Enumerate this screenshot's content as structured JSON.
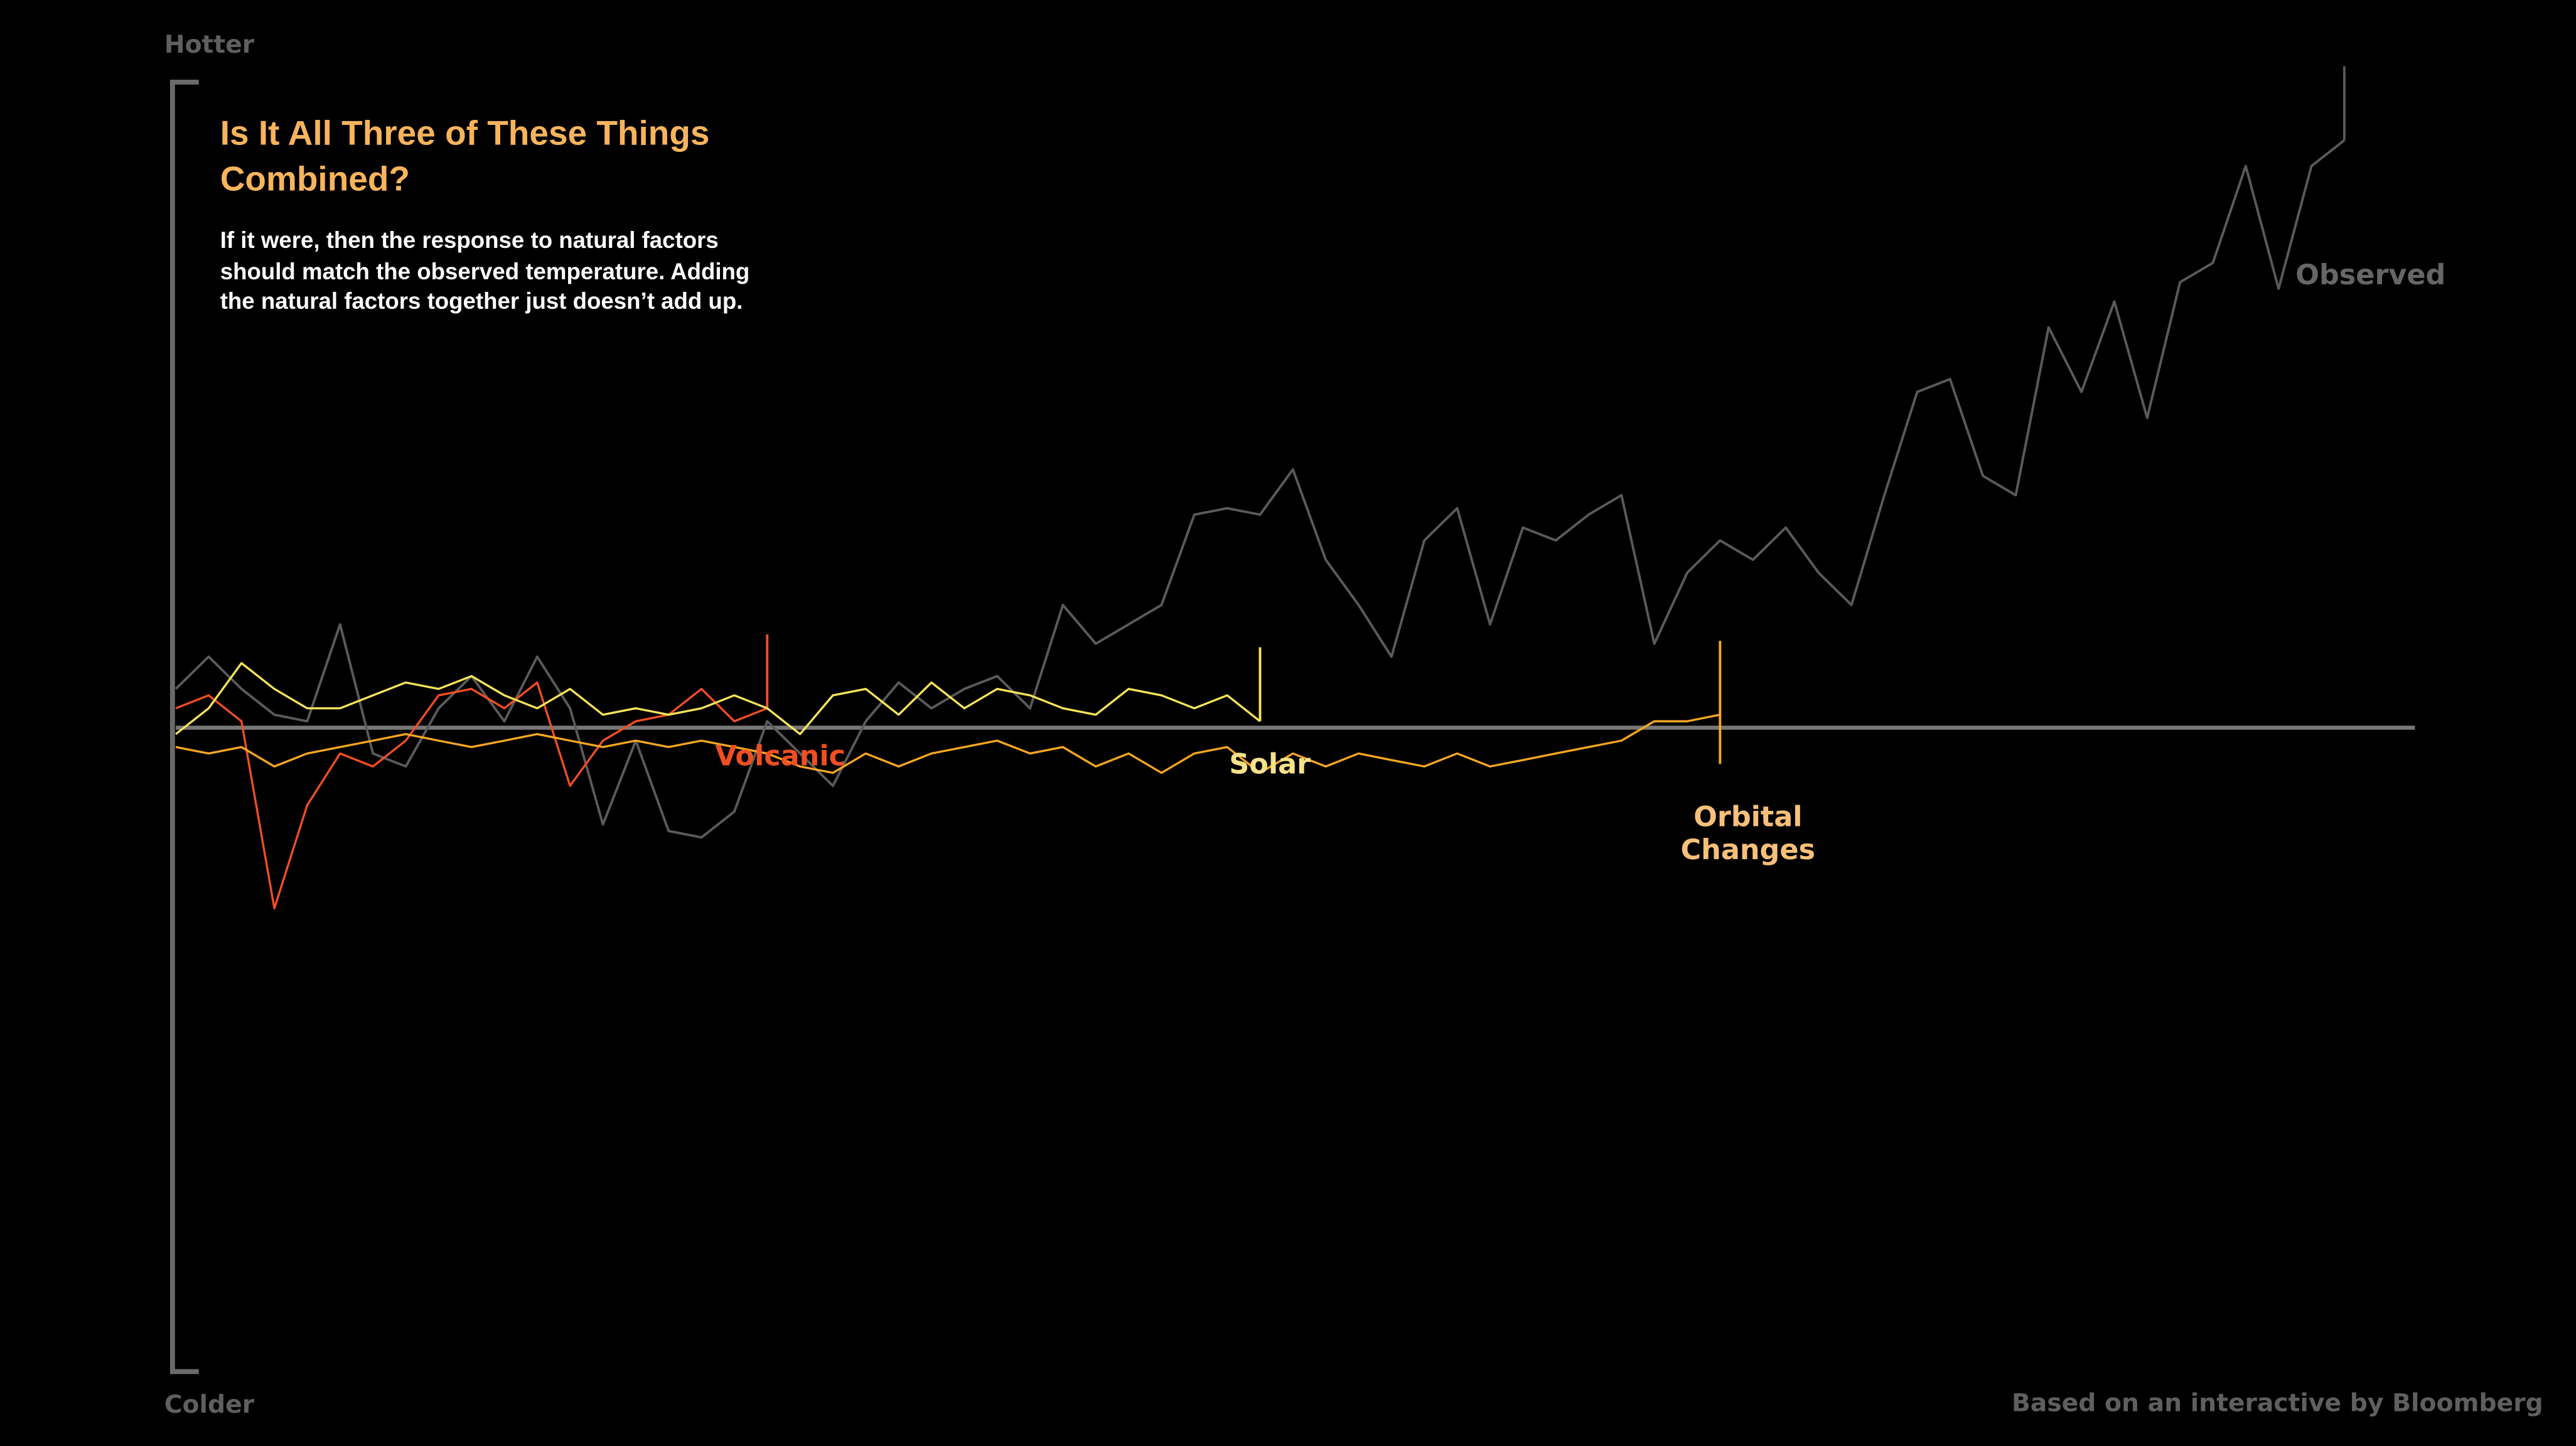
{
  "chart_data": {
    "type": "line",
    "title": "Is It All Three of These Things Combined?",
    "subtitle": "If it were, then the response to natural factors should match the observed temperature. Adding the natural factors together just doesn’t add up.",
    "y_top_label": "Hotter",
    "y_bottom_label": "Colder",
    "credit": "Based on an interactive by Bloomberg",
    "ylim": [
      -1,
      1
    ],
    "series": [
      {
        "name": "Observed",
        "color": "#5a5a5a",
        "values": [
          0.06,
          0.11,
          0.06,
          0.02,
          0.01,
          0.16,
          -0.04,
          -0.06,
          0.03,
          0.08,
          0.01,
          0.11,
          0.03,
          -0.15,
          -0.02,
          -0.16,
          -0.17,
          -0.13,
          0.01,
          -0.04,
          -0.09,
          0.01,
          0.07,
          0.03,
          0.06,
          0.08,
          0.03,
          0.19,
          0.13,
          0.16,
          0.19,
          0.33,
          0.34,
          0.33,
          0.4,
          0.26,
          0.19,
          0.11,
          0.29,
          0.34,
          0.16,
          0.31,
          0.29,
          0.33,
          0.36,
          0.13,
          0.24,
          0.29,
          0.26,
          0.31,
          0.24,
          0.19,
          0.36,
          0.52,
          0.54,
          0.39,
          0.36,
          0.62,
          0.52,
          0.66,
          0.48,
          0.69,
          0.72,
          0.87,
          0.68,
          0.87,
          0.91
        ]
      },
      {
        "name": "Volcanic",
        "color": "#f04e23",
        "values": [
          0.03,
          0.05,
          0.01,
          -0.28,
          -0.12,
          -0.04,
          -0.06,
          -0.02,
          0.05,
          0.06,
          0.03,
          0.07,
          -0.09,
          -0.02,
          0.01,
          0.02,
          0.06,
          0.01,
          0.03
        ]
      },
      {
        "name": "Solar",
        "color": "#f7e35a",
        "values": [
          -0.01,
          0.03,
          0.1,
          0.06,
          0.03,
          0.03,
          0.05,
          0.07,
          0.06,
          0.08,
          0.05,
          0.03,
          0.06,
          0.02,
          0.03,
          0.02,
          0.03,
          0.05,
          0.03,
          -0.01,
          0.05,
          0.06,
          0.02,
          0.07,
          0.03,
          0.06,
          0.05,
          0.03,
          0.02,
          0.06,
          0.05,
          0.03,
          0.05,
          0.01
        ]
      },
      {
        "name": "Orbital Changes",
        "color": "#f5a623",
        "values": [
          -0.03,
          -0.04,
          -0.03,
          -0.06,
          -0.04,
          -0.03,
          -0.02,
          -0.01,
          -0.02,
          -0.03,
          -0.02,
          -0.01,
          -0.02,
          -0.03,
          -0.02,
          -0.03,
          -0.02,
          -0.03,
          -0.04,
          -0.06,
          -0.07,
          -0.04,
          -0.06,
          -0.04,
          -0.03,
          -0.02,
          -0.04,
          -0.03,
          -0.06,
          -0.04,
          -0.07,
          -0.04,
          -0.03,
          -0.07,
          -0.04,
          -0.06,
          -0.04,
          -0.05,
          -0.06,
          -0.04,
          -0.06,
          -0.05,
          -0.04,
          -0.03,
          -0.02,
          0.01,
          0.01,
          0.02
        ]
      }
    ]
  }
}
